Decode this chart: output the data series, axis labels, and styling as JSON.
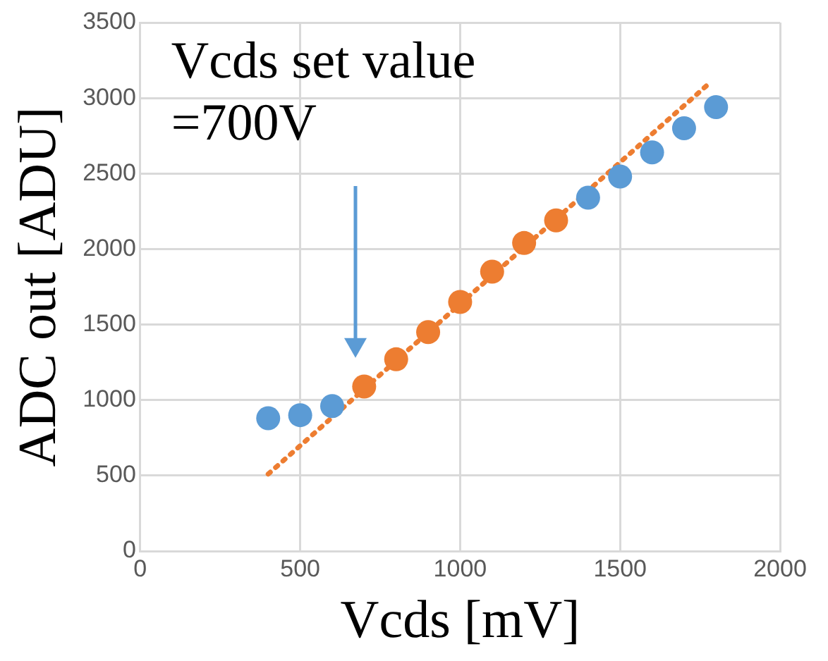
{
  "chart_data": {
    "type": "scatter",
    "xlabel": "Vcds [mV]",
    "ylabel": "ADC out [ADU]",
    "annotations": [
      "Vcds set value\n=700V"
    ],
    "xlim": [
      0,
      2000
    ],
    "xticks": [
      0,
      500,
      1000,
      1500,
      2000
    ],
    "ylim": [
      0,
      3500
    ],
    "yticks": [
      0,
      500,
      1000,
      1500,
      2000,
      2500,
      3000,
      3500
    ],
    "grid": true,
    "legend": false,
    "marker": "circle",
    "series": [
      {
        "color": "#5b9bd5",
        "x": [
          400,
          500,
          600,
          1400,
          1500,
          1600,
          1700,
          1800
        ],
        "values": [
          880,
          900,
          960,
          2340,
          2480,
          2640,
          2800,
          2940
        ]
      },
      {
        "color": "#ed7d31",
        "x": [
          700,
          800,
          900,
          1000,
          1100,
          1200,
          1300
        ],
        "values": [
          1090,
          1270,
          1450,
          1650,
          1850,
          2040,
          2190
        ]
      },
      {
        "type": "line",
        "color": "#ed7d31",
        "line_style": "dotted",
        "marker": "none",
        "x": [
          400,
          1780
        ],
        "values": [
          510,
          3100
        ]
      }
    ]
  }
}
